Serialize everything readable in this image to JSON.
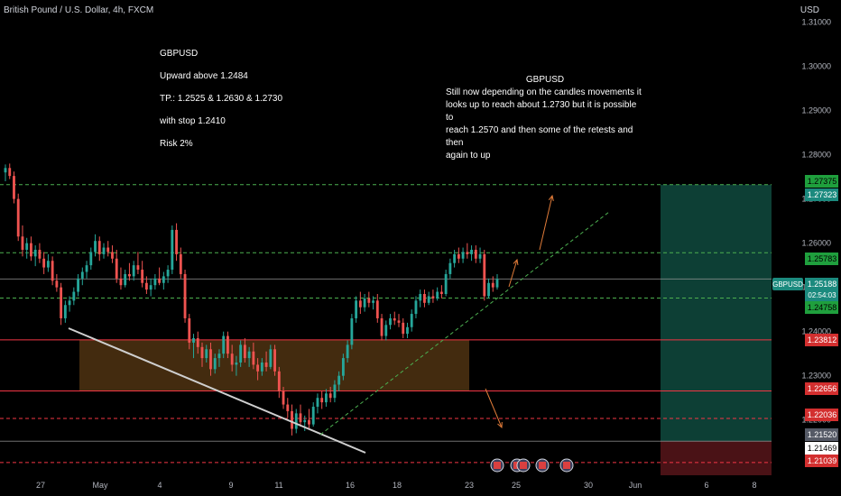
{
  "header": {
    "symbol_line": "British Pound / U.S. Dollar, 4h, FXCM",
    "currency": "USD"
  },
  "notes": {
    "setup": {
      "pair": "GBPUSD",
      "direction": "Upward above 1.2484",
      "targets": "TP.:  1.2525  &  1.2630 & 1.2730",
      "stop": "with stop 1.2410",
      "risk": "Risk 2%"
    },
    "comment": {
      "title": "GBPUSD",
      "body": [
        "Still now depending on the candles movements it",
        "looks up to reach about 1.2730 but it is possible to",
        "reach 1.2570 and then some of the retests and then",
        "again to up"
      ]
    }
  },
  "colors": {
    "up": "#26a69a",
    "down": "#ef5350",
    "bg": "#000000",
    "zone": "#5a3a14",
    "target_zone": "#0d3f35",
    "stop_zone": "#4a1216",
    "green_line": "#4caf50",
    "red_line": "#f23645",
    "trendline": "#cfcfcf",
    "arrow": "#e07b39"
  },
  "chart_data": {
    "type": "candlestick",
    "title": "British Pound / U.S. Dollar, 4h, FXCM",
    "y_axis_unit": "USD",
    "ylim": [
      1.2075,
      1.315
    ],
    "y_ticks": [
      "1.31000",
      "1.30000",
      "1.29000",
      "1.28000",
      "1.27000",
      "1.26000",
      "1.25000",
      "1.24000",
      "1.23000",
      "1.22000"
    ],
    "x_ticks": [
      "27",
      "May",
      "4",
      "9",
      "11",
      "16",
      "18",
      "23",
      "25",
      "30",
      "Jun",
      "6",
      "8"
    ],
    "price_labels": [
      {
        "value": "1.27375",
        "kind": "green"
      },
      {
        "value": "1.27323",
        "kind": "teal"
      },
      {
        "value": "1.25783",
        "kind": "green"
      },
      {
        "value": "GBPUSD",
        "kind": "teal"
      },
      {
        "value": "1.25188",
        "kind": "teal"
      },
      {
        "value": "02:54:03",
        "kind": "teal"
      },
      {
        "value": "1.24758",
        "kind": "green"
      },
      {
        "value": "1.23812",
        "kind": "red"
      },
      {
        "value": "1.22656",
        "kind": "red"
      },
      {
        "value": "1.22036",
        "kind": "red"
      },
      {
        "value": "1.21520",
        "kind": "gray"
      },
      {
        "value": "1.21469",
        "kind": "white"
      },
      {
        "value": "1.21039",
        "kind": "red"
      }
    ],
    "horizontal_levels": [
      {
        "value": 1.27323,
        "style": "green-dashed"
      },
      {
        "value": 1.25783,
        "style": "green-dashed"
      },
      {
        "value": 1.24758,
        "style": "green-dashed"
      },
      {
        "value": 1.25188,
        "style": "gray-solid"
      },
      {
        "value": 1.23812,
        "style": "red-solid"
      },
      {
        "value": 1.22656,
        "style": "red-solid"
      },
      {
        "value": 1.22036,
        "style": "red-dashed"
      },
      {
        "value": 1.2152,
        "style": "gray-solid"
      },
      {
        "value": 1.21039,
        "style": "red-dashed"
      }
    ],
    "demand_zone": {
      "from": 1.22656,
      "to": 1.23812
    },
    "position": {
      "entry": 1.2152,
      "target": 1.27323,
      "stop": 1.21039
    },
    "candles": [
      {
        "o": 1.276,
        "h": 1.2778,
        "l": 1.274,
        "c": 1.277
      },
      {
        "o": 1.277,
        "h": 1.278,
        "l": 1.2745,
        "c": 1.2752
      },
      {
        "o": 1.2752,
        "h": 1.2762,
        "l": 1.269,
        "c": 1.27
      },
      {
        "o": 1.27,
        "h": 1.2712,
        "l": 1.2605,
        "c": 1.2615
      },
      {
        "o": 1.2615,
        "h": 1.264,
        "l": 1.257,
        "c": 1.2585
      },
      {
        "o": 1.2585,
        "h": 1.2612,
        "l": 1.2565,
        "c": 1.26
      },
      {
        "o": 1.26,
        "h": 1.2615,
        "l": 1.256,
        "c": 1.257
      },
      {
        "o": 1.257,
        "h": 1.2595,
        "l": 1.2548,
        "c": 1.2585
      },
      {
        "o": 1.2585,
        "h": 1.26,
        "l": 1.2555,
        "c": 1.2565
      },
      {
        "o": 1.2565,
        "h": 1.258,
        "l": 1.253,
        "c": 1.2545
      },
      {
        "o": 1.2545,
        "h": 1.2575,
        "l": 1.2535,
        "c": 1.256
      },
      {
        "o": 1.256,
        "h": 1.257,
        "l": 1.2505,
        "c": 1.2515
      },
      {
        "o": 1.2515,
        "h": 1.253,
        "l": 1.249,
        "c": 1.25
      },
      {
        "o": 1.25,
        "h": 1.251,
        "l": 1.2415,
        "c": 1.243
      },
      {
        "o": 1.243,
        "h": 1.247,
        "l": 1.242,
        "c": 1.246
      },
      {
        "o": 1.246,
        "h": 1.248,
        "l": 1.2445,
        "c": 1.247
      },
      {
        "o": 1.247,
        "h": 1.25,
        "l": 1.246,
        "c": 1.249
      },
      {
        "o": 1.249,
        "h": 1.253,
        "l": 1.248,
        "c": 1.252
      },
      {
        "o": 1.252,
        "h": 1.2545,
        "l": 1.2505,
        "c": 1.2535
      },
      {
        "o": 1.2535,
        "h": 1.256,
        "l": 1.252,
        "c": 1.255
      },
      {
        "o": 1.255,
        "h": 1.259,
        "l": 1.254,
        "c": 1.258
      },
      {
        "o": 1.258,
        "h": 1.262,
        "l": 1.257,
        "c": 1.2605
      },
      {
        "o": 1.2605,
        "h": 1.2615,
        "l": 1.256,
        "c": 1.2575
      },
      {
        "o": 1.2575,
        "h": 1.26,
        "l": 1.2565,
        "c": 1.259
      },
      {
        "o": 1.259,
        "h": 1.2605,
        "l": 1.257,
        "c": 1.258
      },
      {
        "o": 1.258,
        "h": 1.2595,
        "l": 1.2555,
        "c": 1.2565
      },
      {
        "o": 1.2565,
        "h": 1.2585,
        "l": 1.251,
        "c": 1.252
      },
      {
        "o": 1.252,
        "h": 1.2545,
        "l": 1.2495,
        "c": 1.2505
      },
      {
        "o": 1.2505,
        "h": 1.254,
        "l": 1.25,
        "c": 1.253
      },
      {
        "o": 1.253,
        "h": 1.2555,
        "l": 1.2515,
        "c": 1.2525
      },
      {
        "o": 1.2525,
        "h": 1.256,
        "l": 1.2515,
        "c": 1.255
      },
      {
        "o": 1.255,
        "h": 1.258,
        "l": 1.253,
        "c": 1.254
      },
      {
        "o": 1.254,
        "h": 1.256,
        "l": 1.25,
        "c": 1.251
      },
      {
        "o": 1.251,
        "h": 1.2525,
        "l": 1.2485,
        "c": 1.2495
      },
      {
        "o": 1.2495,
        "h": 1.252,
        "l": 1.248,
        "c": 1.2505
      },
      {
        "o": 1.2505,
        "h": 1.253,
        "l": 1.2495,
        "c": 1.252
      },
      {
        "o": 1.252,
        "h": 1.2545,
        "l": 1.2505,
        "c": 1.251
      },
      {
        "o": 1.251,
        "h": 1.2535,
        "l": 1.2495,
        "c": 1.2525
      },
      {
        "o": 1.2525,
        "h": 1.255,
        "l": 1.251,
        "c": 1.254
      },
      {
        "o": 1.254,
        "h": 1.264,
        "l": 1.253,
        "c": 1.263
      },
      {
        "o": 1.263,
        "h": 1.2645,
        "l": 1.256,
        "c": 1.2575
      },
      {
        "o": 1.2575,
        "h": 1.259,
        "l": 1.252,
        "c": 1.253
      },
      {
        "o": 1.253,
        "h": 1.254,
        "l": 1.242,
        "c": 1.243
      },
      {
        "o": 1.243,
        "h": 1.244,
        "l": 1.236,
        "c": 1.2375
      },
      {
        "o": 1.2375,
        "h": 1.2395,
        "l": 1.234,
        "c": 1.2385
      },
      {
        "o": 1.2385,
        "h": 1.24,
        "l": 1.235,
        "c": 1.2365
      },
      {
        "o": 1.2365,
        "h": 1.2375,
        "l": 1.232,
        "c": 1.234
      },
      {
        "o": 1.234,
        "h": 1.237,
        "l": 1.233,
        "c": 1.236
      },
      {
        "o": 1.236,
        "h": 1.2375,
        "l": 1.23,
        "c": 1.2315
      },
      {
        "o": 1.2315,
        "h": 1.235,
        "l": 1.2305,
        "c": 1.234
      },
      {
        "o": 1.234,
        "h": 1.236,
        "l": 1.232,
        "c": 1.235
      },
      {
        "o": 1.235,
        "h": 1.24,
        "l": 1.234,
        "c": 1.239
      },
      {
        "o": 1.239,
        "h": 1.24,
        "l": 1.234,
        "c": 1.235
      },
      {
        "o": 1.235,
        "h": 1.237,
        "l": 1.231,
        "c": 1.2325
      },
      {
        "o": 1.2325,
        "h": 1.2345,
        "l": 1.23,
        "c": 1.233
      },
      {
        "o": 1.233,
        "h": 1.238,
        "l": 1.232,
        "c": 1.237
      },
      {
        "o": 1.237,
        "h": 1.2385,
        "l": 1.233,
        "c": 1.234
      },
      {
        "o": 1.234,
        "h": 1.2365,
        "l": 1.232,
        "c": 1.2355
      },
      {
        "o": 1.2355,
        "h": 1.2375,
        "l": 1.2315,
        "c": 1.2325
      },
      {
        "o": 1.2325,
        "h": 1.234,
        "l": 1.229,
        "c": 1.231
      },
      {
        "o": 1.231,
        "h": 1.234,
        "l": 1.23,
        "c": 1.233
      },
      {
        "o": 1.233,
        "h": 1.2355,
        "l": 1.231,
        "c": 1.232
      },
      {
        "o": 1.232,
        "h": 1.237,
        "l": 1.2315,
        "c": 1.236
      },
      {
        "o": 1.236,
        "h": 1.237,
        "l": 1.23,
        "c": 1.231
      },
      {
        "o": 1.231,
        "h": 1.232,
        "l": 1.225,
        "c": 1.2265
      },
      {
        "o": 1.2265,
        "h": 1.2275,
        "l": 1.2225,
        "c": 1.2235
      },
      {
        "o": 1.2235,
        "h": 1.225,
        "l": 1.2205,
        "c": 1.222
      },
      {
        "o": 1.222,
        "h": 1.2235,
        "l": 1.2165,
        "c": 1.218
      },
      {
        "o": 1.218,
        "h": 1.2225,
        "l": 1.217,
        "c": 1.2215
      },
      {
        "o": 1.2215,
        "h": 1.2235,
        "l": 1.2185,
        "c": 1.2195
      },
      {
        "o": 1.2195,
        "h": 1.221,
        "l": 1.2175,
        "c": 1.22
      },
      {
        "o": 1.22,
        "h": 1.2225,
        "l": 1.218,
        "c": 1.219
      },
      {
        "o": 1.219,
        "h": 1.224,
        "l": 1.2185,
        "c": 1.223
      },
      {
        "o": 1.223,
        "h": 1.226,
        "l": 1.2215,
        "c": 1.225
      },
      {
        "o": 1.225,
        "h": 1.2265,
        "l": 1.2225,
        "c": 1.224
      },
      {
        "o": 1.224,
        "h": 1.227,
        "l": 1.223,
        "c": 1.226
      },
      {
        "o": 1.226,
        "h": 1.2275,
        "l": 1.224,
        "c": 1.225
      },
      {
        "o": 1.225,
        "h": 1.229,
        "l": 1.224,
        "c": 1.228
      },
      {
        "o": 1.228,
        "h": 1.231,
        "l": 1.2265,
        "c": 1.23
      },
      {
        "o": 1.23,
        "h": 1.235,
        "l": 1.229,
        "c": 1.234
      },
      {
        "o": 1.234,
        "h": 1.238,
        "l": 1.233,
        "c": 1.237
      },
      {
        "o": 1.237,
        "h": 1.244,
        "l": 1.236,
        "c": 1.243
      },
      {
        "o": 1.243,
        "h": 1.248,
        "l": 1.242,
        "c": 1.247
      },
      {
        "o": 1.247,
        "h": 1.249,
        "l": 1.244,
        "c": 1.2455
      },
      {
        "o": 1.2455,
        "h": 1.2485,
        "l": 1.2445,
        "c": 1.2475
      },
      {
        "o": 1.2475,
        "h": 1.249,
        "l": 1.2455,
        "c": 1.2465
      },
      {
        "o": 1.2465,
        "h": 1.248,
        "l": 1.245,
        "c": 1.247
      },
      {
        "o": 1.247,
        "h": 1.2485,
        "l": 1.242,
        "c": 1.243
      },
      {
        "o": 1.243,
        "h": 1.244,
        "l": 1.238,
        "c": 1.239
      },
      {
        "o": 1.239,
        "h": 1.2425,
        "l": 1.238,
        "c": 1.2415
      },
      {
        "o": 1.2415,
        "h": 1.244,
        "l": 1.2405,
        "c": 1.243
      },
      {
        "o": 1.243,
        "h": 1.2445,
        "l": 1.2415,
        "c": 1.2425
      },
      {
        "o": 1.2425,
        "h": 1.244,
        "l": 1.241,
        "c": 1.242
      },
      {
        "o": 1.242,
        "h": 1.243,
        "l": 1.2385,
        "c": 1.2395
      },
      {
        "o": 1.2395,
        "h": 1.242,
        "l": 1.2385,
        "c": 1.241
      },
      {
        "o": 1.241,
        "h": 1.245,
        "l": 1.24,
        "c": 1.244
      },
      {
        "o": 1.244,
        "h": 1.248,
        "l": 1.243,
        "c": 1.247
      },
      {
        "o": 1.247,
        "h": 1.2495,
        "l": 1.2455,
        "c": 1.2485
      },
      {
        "o": 1.2485,
        "h": 1.2495,
        "l": 1.2455,
        "c": 1.2465
      },
      {
        "o": 1.2465,
        "h": 1.249,
        "l": 1.246,
        "c": 1.248
      },
      {
        "o": 1.248,
        "h": 1.2495,
        "l": 1.2465,
        "c": 1.2475
      },
      {
        "o": 1.2475,
        "h": 1.25,
        "l": 1.247,
        "c": 1.249
      },
      {
        "o": 1.249,
        "h": 1.2505,
        "l": 1.2475,
        "c": 1.2485
      },
      {
        "o": 1.2485,
        "h": 1.254,
        "l": 1.248,
        "c": 1.253
      },
      {
        "o": 1.253,
        "h": 1.2565,
        "l": 1.252,
        "c": 1.2555
      },
      {
        "o": 1.2555,
        "h": 1.2585,
        "l": 1.2545,
        "c": 1.2575
      },
      {
        "o": 1.2575,
        "h": 1.259,
        "l": 1.2555,
        "c": 1.2565
      },
      {
        "o": 1.2565,
        "h": 1.259,
        "l": 1.2555,
        "c": 1.258
      },
      {
        "o": 1.258,
        "h": 1.26,
        "l": 1.2565,
        "c": 1.2575
      },
      {
        "o": 1.2575,
        "h": 1.2595,
        "l": 1.256,
        "c": 1.2585
      },
      {
        "o": 1.2585,
        "h": 1.2595,
        "l": 1.2555,
        "c": 1.2565
      },
      {
        "o": 1.2565,
        "h": 1.259,
        "l": 1.2555,
        "c": 1.2575
      },
      {
        "o": 1.2575,
        "h": 1.2585,
        "l": 1.247,
        "c": 1.248
      },
      {
        "o": 1.248,
        "h": 1.252,
        "l": 1.2475,
        "c": 1.251
      },
      {
        "o": 1.251,
        "h": 1.2525,
        "l": 1.249,
        "c": 1.25
      },
      {
        "o": 1.25,
        "h": 1.253,
        "l": 1.2495,
        "c": 1.2519
      }
    ]
  }
}
